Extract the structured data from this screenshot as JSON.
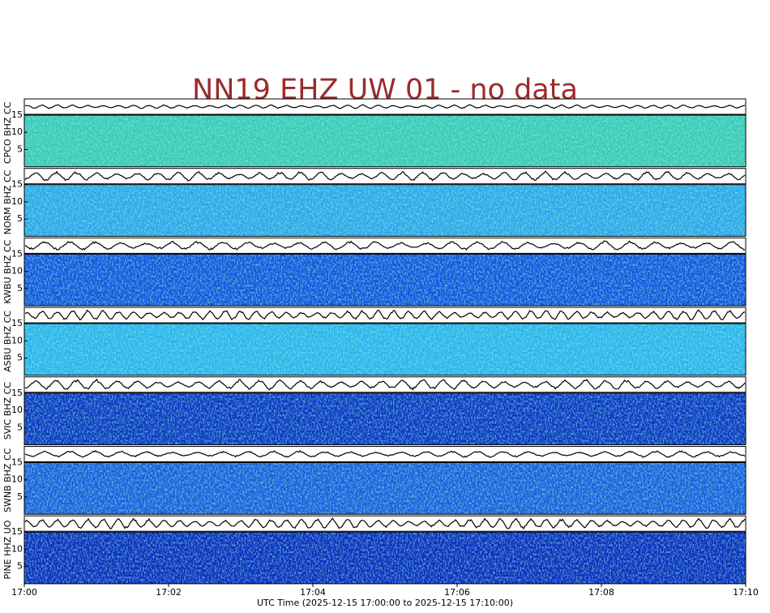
{
  "chart_data": {
    "type": "spectrogram",
    "title": "NN19 EHZ UW 01 - no data",
    "xlabel": "UTC Time (2025-12-15 17:00:00 to 2025-12-15 17:10:00)",
    "categories": [
      "17:00",
      "17:02",
      "17:04",
      "17:06",
      "17:08",
      "17:10"
    ],
    "panels": [
      {
        "label": "CPCO BHZ CC",
        "ylim": [
          0,
          15
        ],
        "yticks": [
          5,
          10,
          15
        ],
        "color": "#3cc8b8"
      },
      {
        "label": "NORM BHZ CC",
        "ylim": [
          0,
          15
        ],
        "yticks": [
          5,
          10,
          15
        ],
        "color": "#2ea4ee"
      },
      {
        "label": "KWBU BHZ CC",
        "ylim": [
          0,
          15
        ],
        "yticks": [
          5,
          10,
          15
        ],
        "color": "#1452e0"
      },
      {
        "label": "ASBU BHZ CC",
        "ylim": [
          0,
          15
        ],
        "yticks": [
          5,
          10,
          15
        ],
        "color": "#2cb2f0"
      },
      {
        "label": "SVIC BHZ CC",
        "ylim": [
          0,
          15
        ],
        "yticks": [
          5,
          10,
          15
        ],
        "color": "#0c34c4"
      },
      {
        "label": "SWNB BHZ CC",
        "ylim": [
          0,
          15
        ],
        "yticks": [
          5,
          10,
          15
        ],
        "color": "#1a5ce0"
      },
      {
        "label": "PINE HHZ UO",
        "ylim": [
          0,
          15
        ],
        "yticks": [
          5,
          10,
          15
        ],
        "color": "#0a2ac0"
      }
    ]
  }
}
